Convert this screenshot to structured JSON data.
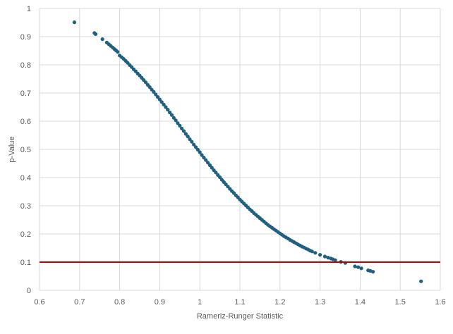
{
  "chart_data": {
    "type": "scatter",
    "title": "",
    "xlabel": "Rameriz-Runger Statistic",
    "ylabel": "p-Value",
    "xlim": [
      0.6,
      1.6
    ],
    "ylim": [
      0,
      1
    ],
    "x_ticks": [
      0.6,
      0.7,
      0.8,
      0.9,
      1.0,
      1.1,
      1.2,
      1.3,
      1.4,
      1.5,
      1.6
    ],
    "x_tick_labels": [
      "0.6",
      "0.7",
      "0.8",
      "0.9",
      "1",
      "1.1",
      "1.2",
      "1.3",
      "1.4",
      "1.5",
      "1.6"
    ],
    "y_ticks": [
      0,
      0.1,
      0.2,
      0.3,
      0.4,
      0.5,
      0.6,
      0.7,
      0.8,
      0.9,
      1.0
    ],
    "y_tick_labels": [
      "0",
      "0.1",
      "0.2",
      "0.3",
      "0.4",
      "0.5",
      "0.6",
      "0.7",
      "0.8",
      "0.9",
      "1"
    ],
    "grid": true,
    "legend": "none",
    "colors": {
      "points": "#1f5f80",
      "reference_line": "#c00000",
      "grid": "#d9d9d9",
      "text": "#595959"
    },
    "reference_line": {
      "y": 0.1
    },
    "series": [
      {
        "x": [
          0.687,
          0.737,
          0.74,
          0.757,
          0.768,
          0.773,
          0.778,
          0.783,
          0.787,
          0.791,
          0.795,
          0.8,
          0.805,
          0.81,
          0.815,
          0.82,
          0.825,
          0.83,
          0.835,
          0.84,
          0.845,
          0.85,
          0.855,
          0.86,
          0.865,
          0.87,
          0.875,
          0.88,
          0.885,
          0.89,
          0.895,
          0.9,
          0.905,
          0.91,
          0.915,
          0.92,
          0.925,
          0.93,
          0.935,
          0.94,
          0.945,
          0.95,
          0.955,
          0.96,
          0.965,
          0.97,
          0.975,
          0.98,
          0.985,
          0.99,
          0.995,
          1.0,
          1.005,
          1.01,
          1.015,
          1.02,
          1.025,
          1.03,
          1.035,
          1.04,
          1.045,
          1.05,
          1.055,
          1.06,
          1.065,
          1.07,
          1.075,
          1.08,
          1.085,
          1.09,
          1.095,
          1.1,
          1.105,
          1.11,
          1.115,
          1.12,
          1.125,
          1.13,
          1.135,
          1.14,
          1.145,
          1.15,
          1.155,
          1.16,
          1.165,
          1.17,
          1.175,
          1.18,
          1.185,
          1.19,
          1.195,
          1.2,
          1.205,
          1.21,
          1.215,
          1.22,
          1.225,
          1.23,
          1.235,
          1.24,
          1.245,
          1.25,
          1.255,
          1.26,
          1.265,
          1.27,
          1.275,
          1.28,
          1.288,
          1.3,
          1.312,
          1.32,
          1.327,
          1.332,
          1.338,
          1.352,
          1.363,
          1.387,
          1.395,
          1.403,
          1.42,
          1.425,
          1.432,
          1.552
        ],
        "y": [
          0.951,
          0.913,
          0.909,
          0.891,
          0.879,
          0.873,
          0.867,
          0.861,
          0.856,
          0.851,
          0.846,
          0.833,
          0.827,
          0.821,
          0.814,
          0.807,
          0.799,
          0.792,
          0.784,
          0.777,
          0.769,
          0.762,
          0.754,
          0.746,
          0.738,
          0.729,
          0.721,
          0.712,
          0.704,
          0.695,
          0.686,
          0.677,
          0.668,
          0.659,
          0.65,
          0.641,
          0.631,
          0.622,
          0.612,
          0.603,
          0.593,
          0.584,
          0.574,
          0.565,
          0.555,
          0.546,
          0.536,
          0.527,
          0.517,
          0.508,
          0.499,
          0.49,
          0.48,
          0.471,
          0.462,
          0.453,
          0.444,
          0.435,
          0.426,
          0.418,
          0.409,
          0.401,
          0.392,
          0.384,
          0.376,
          0.368,
          0.36,
          0.352,
          0.345,
          0.337,
          0.33,
          0.322,
          0.315,
          0.308,
          0.301,
          0.294,
          0.287,
          0.281,
          0.274,
          0.268,
          0.262,
          0.256,
          0.25,
          0.244,
          0.238,
          0.232,
          0.227,
          0.222,
          0.217,
          0.212,
          0.207,
          0.202,
          0.197,
          0.192,
          0.188,
          0.184,
          0.179,
          0.175,
          0.171,
          0.167,
          0.163,
          0.159,
          0.155,
          0.152,
          0.148,
          0.145,
          0.141,
          0.138,
          0.133,
          0.126,
          0.12,
          0.116,
          0.113,
          0.11,
          0.107,
          0.101,
          0.097,
          0.085,
          0.082,
          0.078,
          0.071,
          0.069,
          0.066,
          0.032
        ]
      }
    ]
  }
}
